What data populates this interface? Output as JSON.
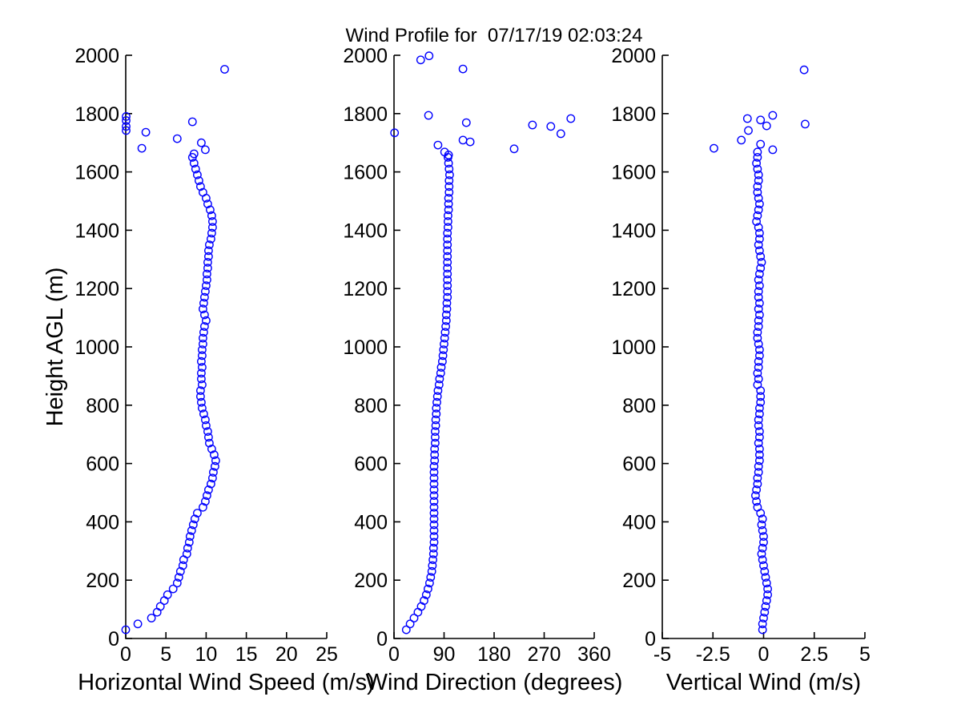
{
  "title": "Wind Profile for  07/17/19 02:03:24",
  "colors": {
    "marker": "#0000ff",
    "axis": "#000000",
    "text": "#000000",
    "background": "#ffffff"
  },
  "shared_y_axis": {
    "label": "Height AGL (m)",
    "ylim": [
      0,
      2000
    ],
    "ytick_values": [
      0,
      200,
      400,
      600,
      800,
      1000,
      1200,
      1400,
      1600,
      1800,
      2000
    ],
    "ytick_labels": [
      "0",
      "200",
      "400",
      "600",
      "800",
      "1000",
      "1200",
      "1400",
      "1600",
      "1800",
      "2000"
    ]
  },
  "gate_heights_m": [
    30,
    50,
    70,
    90,
    110,
    130,
    150,
    170,
    190,
    210,
    230,
    250,
    270,
    290,
    310,
    330,
    350,
    370,
    390,
    410,
    430,
    450,
    470,
    490,
    510,
    530,
    550,
    570,
    590,
    610,
    630,
    650,
    670,
    690,
    710,
    730,
    750,
    770,
    790,
    810,
    830,
    850,
    870,
    890,
    910,
    930,
    950,
    970,
    990,
    1010,
    1030,
    1050,
    1070,
    1090,
    1110,
    1130,
    1150,
    1170,
    1190,
    1210,
    1230,
    1250,
    1270,
    1290,
    1310,
    1330,
    1350,
    1370,
    1390,
    1410,
    1430,
    1450,
    1470,
    1490,
    1510,
    1530,
    1550,
    1570,
    1590,
    1610,
    1630,
    1650
  ],
  "chart_data": [
    {
      "type": "scatter",
      "xlabel": "Horizontal Wind Speed (m/s)",
      "xlim": [
        0,
        25
      ],
      "xtick_values": [
        0,
        5,
        10,
        15,
        20,
        25
      ],
      "xtick_labels": [
        "0",
        "5",
        "10",
        "15",
        "20",
        "25"
      ],
      "grid": false,
      "legend": null,
      "profile_values": [
        0.0,
        1.5,
        3.2,
        3.9,
        4.3,
        4.8,
        5.2,
        5.9,
        6.4,
        6.6,
        6.8,
        7.1,
        7.2,
        7.6,
        7.7,
        7.9,
        8.0,
        8.2,
        8.4,
        8.6,
        8.9,
        9.6,
        9.9,
        10.1,
        10.3,
        10.6,
        10.8,
        10.9,
        11.1,
        11.2,
        11.0,
        10.7,
        10.4,
        10.3,
        10.2,
        10.0,
        9.9,
        9.7,
        9.5,
        9.4,
        9.3,
        9.3,
        9.5,
        9.4,
        9.4,
        9.5,
        9.4,
        9.5,
        9.5,
        9.6,
        9.6,
        9.7,
        9.8,
        10.0,
        9.8,
        9.6,
        9.7,
        9.8,
        9.9,
        10.0,
        10.1,
        10.1,
        10.2,
        10.2,
        10.3,
        10.3,
        10.4,
        10.6,
        10.7,
        10.8,
        10.8,
        10.7,
        10.5,
        10.2,
        10.0,
        9.6,
        9.3,
        9.1,
        8.9,
        8.7,
        8.5,
        8.3
      ],
      "outlier_points": [
        [
          12.3,
          1952
        ],
        [
          0.05,
          1790
        ],
        [
          0.05,
          1776
        ],
        [
          0.05,
          1756
        ],
        [
          0.05,
          1742
        ],
        [
          2.5,
          1736
        ],
        [
          2.0,
          1681
        ],
        [
          6.4,
          1714
        ],
        [
          8.3,
          1772
        ],
        [
          9.4,
          1700
        ],
        [
          9.9,
          1676
        ],
        [
          8.5,
          1662
        ]
      ]
    },
    {
      "type": "scatter",
      "xlabel": "Wind Direction (degrees)",
      "xlim": [
        0,
        360
      ],
      "xtick_values": [
        0,
        90,
        180,
        270,
        360
      ],
      "xtick_labels": [
        "0",
        "90",
        "180",
        "270",
        "360"
      ],
      "grid": false,
      "legend": null,
      "profile_values": [
        22,
        29,
        36,
        43,
        49,
        54,
        58,
        61,
        64,
        66,
        68,
        69,
        70,
        71,
        71,
        72,
        72,
        72,
        72,
        72,
        72,
        72,
        72,
        72,
        72,
        72,
        72,
        72,
        72,
        73,
        73,
        73,
        74,
        74,
        74,
        75,
        75,
        76,
        76,
        77,
        78,
        79,
        81,
        82,
        84,
        85,
        87,
        88,
        89,
        90,
        91,
        92,
        93,
        94,
        94,
        95,
        95,
        96,
        96,
        96,
        96,
        96,
        96,
        96,
        96,
        96,
        96,
        96,
        96,
        97,
        97,
        97,
        98,
        98,
        98,
        99,
        99,
        99,
        100,
        99,
        98,
        97
      ],
      "outlier_points": [
        [
          48,
          1984
        ],
        [
          63,
          1998
        ],
        [
          124,
          1953
        ],
        [
          62,
          1794
        ],
        [
          130,
          1769
        ],
        [
          1,
          1734
        ],
        [
          249,
          1761
        ],
        [
          282,
          1756
        ],
        [
          300,
          1731
        ],
        [
          318,
          1783
        ],
        [
          124,
          1709
        ],
        [
          137,
          1703
        ],
        [
          79,
          1692
        ],
        [
          216,
          1679
        ],
        [
          91,
          1668
        ],
        [
          98,
          1658
        ]
      ]
    },
    {
      "type": "scatter",
      "xlabel": "Vertical Wind (m/s)",
      "xlim": [
        -5,
        5
      ],
      "xtick_values": [
        -5,
        -2.5,
        0,
        2.5,
        5
      ],
      "xtick_labels": [
        "-5",
        "-2.5",
        "0",
        "2.5",
        "5"
      ],
      "grid": false,
      "legend": null,
      "profile_values": [
        -0.05,
        -0.05,
        0.0,
        0.05,
        0.1,
        0.15,
        0.2,
        0.2,
        0.15,
        0.1,
        0.05,
        0.0,
        -0.05,
        -0.1,
        -0.05,
        0.0,
        0.0,
        -0.05,
        -0.1,
        -0.05,
        -0.15,
        -0.3,
        -0.35,
        -0.4,
        -0.35,
        -0.3,
        -0.3,
        -0.25,
        -0.25,
        -0.2,
        -0.2,
        -0.2,
        -0.25,
        -0.2,
        -0.2,
        -0.25,
        -0.25,
        -0.2,
        -0.2,
        -0.15,
        -0.15,
        -0.15,
        -0.3,
        -0.25,
        -0.3,
        -0.25,
        -0.25,
        -0.2,
        -0.2,
        -0.25,
        -0.3,
        -0.3,
        -0.25,
        -0.25,
        -0.2,
        -0.25,
        -0.2,
        -0.25,
        -0.25,
        -0.2,
        -0.25,
        -0.2,
        -0.15,
        -0.1,
        -0.15,
        -0.2,
        -0.25,
        -0.2,
        -0.2,
        -0.25,
        -0.35,
        -0.3,
        -0.25,
        -0.2,
        -0.25,
        -0.3,
        -0.3,
        -0.25,
        -0.25,
        -0.3,
        -0.35,
        -0.3
      ],
      "outlier_points": [
        [
          2.0,
          1950
        ],
        [
          0.45,
          1794
        ],
        [
          -0.8,
          1783
        ],
        [
          -0.15,
          1778
        ],
        [
          2.05,
          1764
        ],
        [
          0.15,
          1758
        ],
        [
          -0.75,
          1742
        ],
        [
          -1.1,
          1709
        ],
        [
          -0.15,
          1695
        ],
        [
          -2.45,
          1681
        ],
        [
          0.45,
          1676
        ],
        [
          -0.3,
          1668
        ]
      ]
    }
  ]
}
